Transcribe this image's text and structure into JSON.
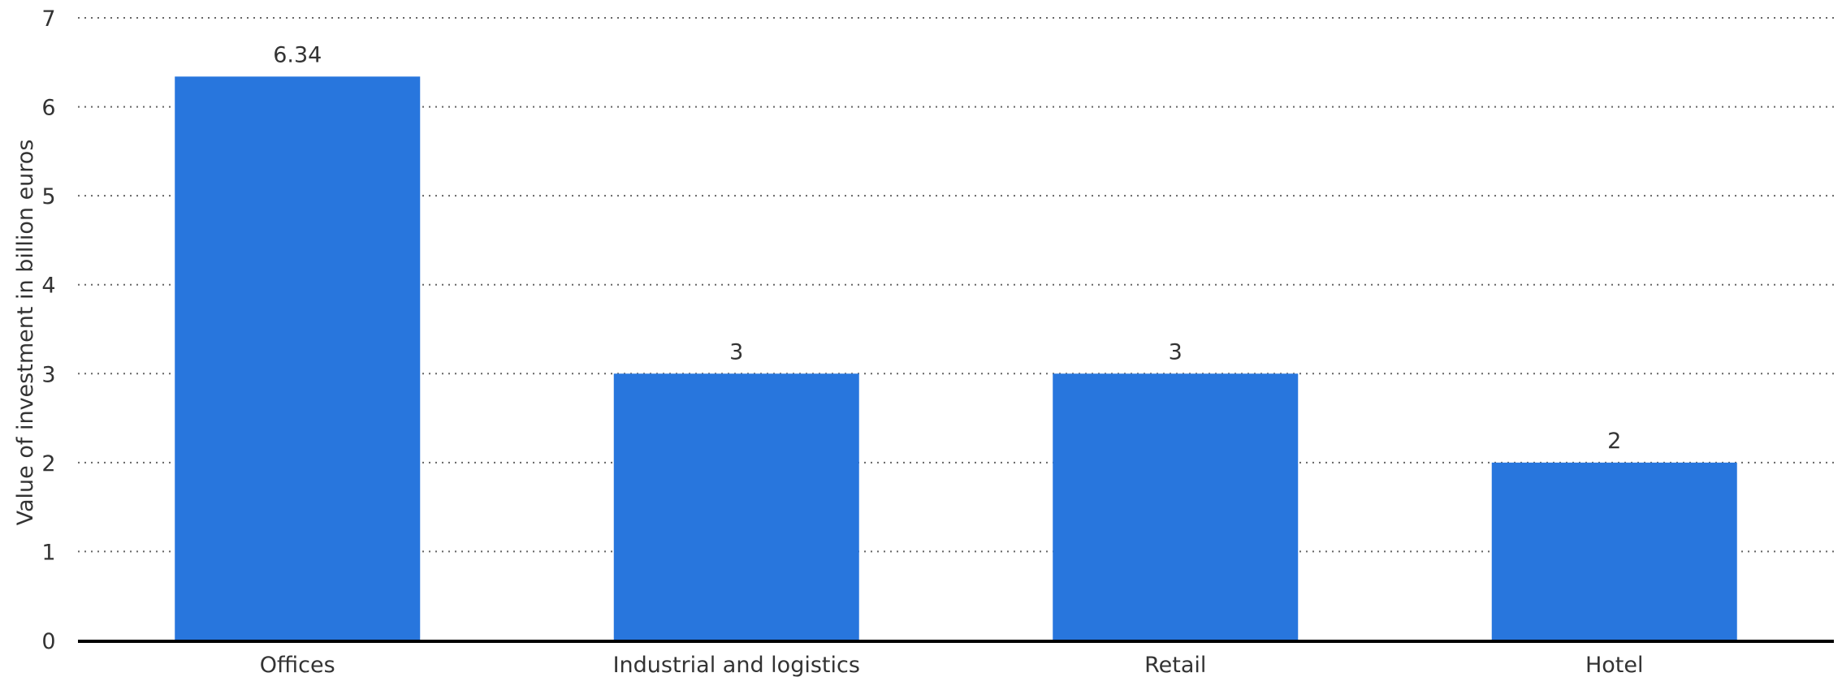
{
  "chart_data": {
    "type": "bar",
    "categories": [
      "Offices",
      "Industrial and logistics",
      "Retail",
      "Hotel"
    ],
    "values": [
      6.34,
      3,
      3,
      2
    ],
    "value_labels": [
      "6.34",
      "3",
      "3",
      "2"
    ],
    "title": "",
    "xlabel": "",
    "ylabel": "Value of investment in billion euros",
    "ylim": [
      0,
      7
    ],
    "yticks": [
      0,
      1,
      2,
      3,
      4,
      5,
      6,
      7
    ],
    "grid": true,
    "grid_style": "dotted",
    "legend": "none",
    "colors": {
      "bar": "#2876dd",
      "text": "#333333",
      "grid": "#666666",
      "axis": "#000000"
    }
  }
}
